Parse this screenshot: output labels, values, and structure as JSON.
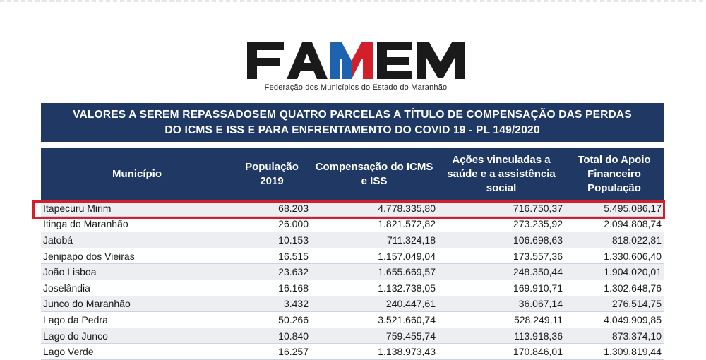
{
  "logo": {
    "letters": [
      "F",
      "A",
      "M",
      "E",
      "M"
    ],
    "subtitle": "Federação dos Municípios do Estado do Maranhão",
    "colors": {
      "dark": "#1a1a1a",
      "blue": "#1e63b0",
      "red": "#d21f2a"
    }
  },
  "title": {
    "line1": "VALORES A SEREM REPASSADOSEM QUATRO PARCELAS A TÍTULO DE COMPENSAÇÃO DAS PERDAS",
    "line2": "DO ICMS E ISS E PARA ENFRENTAMENTO DO COVID 19 - PL 149/2020"
  },
  "table": {
    "headers": {
      "municipio": "Município",
      "populacao": "População 2019",
      "compensacao": "Compensação do ICMS e ISS",
      "acoes": "Ações vinculadas a saúde e a assistência social",
      "total": "Total do Apoio Financeiro População"
    },
    "rows": [
      [
        "Itapecuru Mirim",
        "68.203",
        "4.778.335,80",
        "716.750,37",
        "5.495.086,17"
      ],
      [
        "Itinga do Maranhão",
        "26.000",
        "1.821.572,82",
        "273.235,92",
        "2.094.808,74"
      ],
      [
        "Jatobá",
        "10.153",
        "711.324,18",
        "106.698,63",
        "818.022,81"
      ],
      [
        "Jenipapo dos Vieiras",
        "16.515",
        "1.157.049,04",
        "173.557,36",
        "1.330.606,40"
      ],
      [
        "João Lisboa",
        "23.632",
        "1.655.669,57",
        "248.350,44",
        "1.904.020,01"
      ],
      [
        "Joselândia",
        "16.168",
        "1.132.738,05",
        "169.910,71",
        "1.302.648,76"
      ],
      [
        "Junco do Maranhão",
        "3.432",
        "240.447,61",
        "36.067,14",
        "276.514,75"
      ],
      [
        "Lago da Pedra",
        "50.266",
        "3.521.660,74",
        "528.249,11",
        "4.049.909,85"
      ],
      [
        "Lago do Junco",
        "10.840",
        "759.455,74",
        "113.918,36",
        "873.374,10"
      ],
      [
        "Lago Verde",
        "16.257",
        "1.138.973,43",
        "170.846,01",
        "1.309.819,44"
      ]
    ],
    "highlighted_row": "Itapecuru Mirim",
    "colors": {
      "header_bg": "#1f3864",
      "highlight_border": "#d21f2a",
      "stripe": "#eceef1"
    }
  }
}
